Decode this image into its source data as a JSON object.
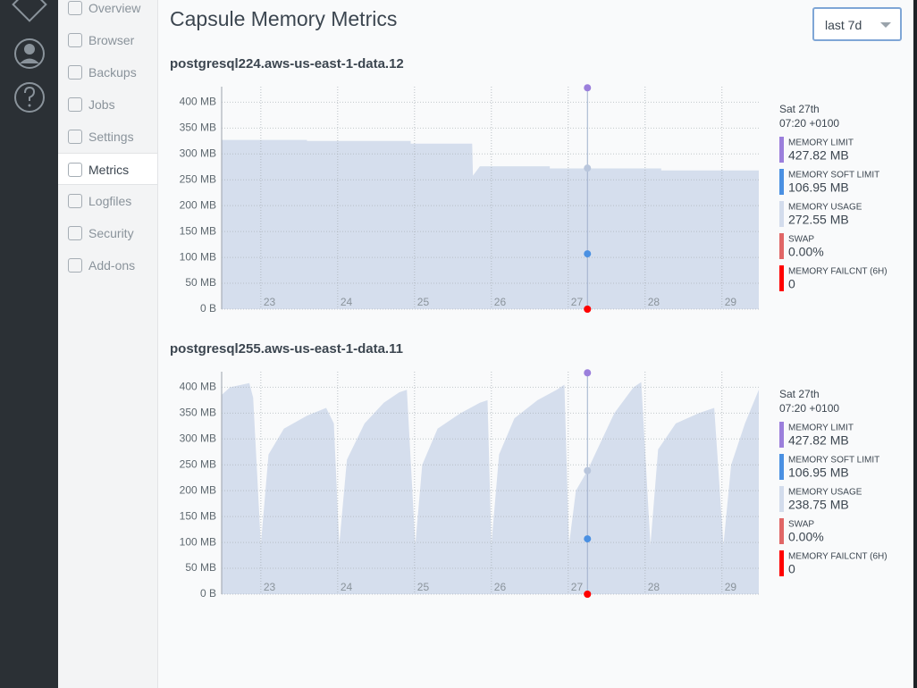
{
  "nav": {
    "items": [
      "Overview",
      "Browser",
      "Backups",
      "Jobs",
      "Settings",
      "Metrics",
      "Logfiles",
      "Security",
      "Add-ons"
    ],
    "active": 5
  },
  "header": {
    "title": "Capsule Memory Metrics",
    "range": "last 7d"
  },
  "chart_data": [
    {
      "type": "area",
      "title": "postgresql224.aws-us-east-1-data.12",
      "xlim": [
        22.49,
        29.48
      ],
      "xticks": [
        23,
        24,
        25,
        26,
        27,
        28,
        29
      ],
      "ylim": [
        0,
        430
      ],
      "yticks": [
        {
          "value": 0,
          "label": "0 B"
        },
        {
          "value": 50,
          "label": "50 MB"
        },
        {
          "value": 100,
          "label": "100 MB"
        },
        {
          "value": 150,
          "label": "150 MB"
        },
        {
          "value": 200,
          "label": "200 MB"
        },
        {
          "value": 250,
          "label": "250 MB"
        },
        {
          "value": 300,
          "label": "300 MB"
        },
        {
          "value": 350,
          "label": "350 MB"
        },
        {
          "value": 400,
          "label": "400 MB"
        }
      ],
      "grid": true,
      "hover": {
        "x": 27.25,
        "date": "Sat 27th",
        "time": "07:20 +0100"
      },
      "series": [
        {
          "name": "MEMORY LIMIT",
          "color": "#9b7fdc",
          "style": "line",
          "x": [
            22.49,
            29.48
          ],
          "values": [
            427.82,
            427.82
          ],
          "hover_value": 427.82,
          "hover_label": "427.82 MB"
        },
        {
          "name": "MEMORY SOFT LIMIT",
          "color": "#4a90e2",
          "style": "line",
          "x": [
            22.49,
            29.48
          ],
          "values": [
            106.95,
            106.95
          ],
          "hover_value": 106.95,
          "hover_label": "106.95 MB"
        },
        {
          "name": "MEMORY USAGE",
          "color": "#d3dcec",
          "style": "area",
          "x": [
            22.49,
            23.6,
            23.6,
            24.95,
            24.95,
            25.75,
            25.76,
            25.85,
            26.76,
            26.76,
            28.21,
            28.21,
            29.48
          ],
          "values": [
            327,
            327,
            325,
            325,
            320,
            320,
            258,
            276,
            276,
            272,
            272,
            268,
            268
          ],
          "hover_value": 272.55,
          "hover_label": "272.55 MB"
        },
        {
          "name": "SWAP",
          "color": "#e06666",
          "style": "line",
          "x": [
            22.49,
            29.48
          ],
          "values": [
            0,
            0
          ],
          "hover_value": 0,
          "hover_label": "0.00%"
        },
        {
          "name": "MEMORY FAILCNT (6H)",
          "color": "#ff0000",
          "style": "line",
          "x": [
            22.49,
            29.48
          ],
          "values": [
            0,
            0
          ],
          "hover_value": 0
        }
      ]
    },
    {
      "type": "area",
      "title": "postgresql255.aws-us-east-1-data.11",
      "xlim": [
        22.49,
        29.48
      ],
      "xticks": [
        23,
        24,
        25,
        26,
        27,
        28,
        29
      ],
      "ylim": [
        0,
        430
      ],
      "yticks": [
        {
          "value": 0,
          "label": "0 B"
        },
        {
          "value": 50,
          "label": "50 MB"
        },
        {
          "value": 100,
          "label": "100 MB"
        },
        {
          "value": 150,
          "label": "150 MB"
        },
        {
          "value": 200,
          "label": "200 MB"
        },
        {
          "value": 250,
          "label": "250 MB"
        },
        {
          "value": 300,
          "label": "300 MB"
        },
        {
          "value": 350,
          "label": "350 MB"
        },
        {
          "value": 400,
          "label": "400 MB"
        }
      ],
      "grid": true,
      "hover": {
        "x": 27.25,
        "date": "Sat 27th",
        "time": "07:20 +0100"
      },
      "series": [
        {
          "name": "MEMORY LIMIT",
          "color": "#9b7fdc",
          "style": "line",
          "x": [
            22.49,
            29.48
          ],
          "values": [
            427.82,
            427.82
          ],
          "hover_value": 427.82,
          "hover_label": "427.82 MB"
        },
        {
          "name": "MEMORY SOFT LIMIT",
          "color": "#4a90e2",
          "style": "line",
          "x": [
            22.49,
            29.48
          ],
          "values": [
            106.95,
            106.95
          ],
          "hover_value": 106.95,
          "hover_label": "106.95 MB"
        },
        {
          "name": "MEMORY USAGE",
          "color": "#d3dcec",
          "style": "area",
          "x": [
            22.49,
            22.6,
            22.85,
            22.9,
            23.0,
            23.1,
            23.3,
            23.6,
            23.85,
            23.95,
            24.02,
            24.12,
            24.35,
            24.6,
            24.8,
            24.9,
            25.01,
            25.1,
            25.3,
            25.6,
            25.85,
            25.95,
            26.0,
            26.1,
            26.3,
            26.6,
            26.85,
            26.95,
            27.01,
            27.1,
            27.25,
            27.6,
            27.85,
            27.95,
            28.07,
            28.17,
            28.4,
            28.7,
            28.9,
            29.02,
            29.12,
            29.3,
            29.48
          ],
          "values": [
            385,
            400,
            408,
            380,
            95,
            270,
            320,
            345,
            360,
            330,
            95,
            260,
            330,
            370,
            390,
            395,
            95,
            250,
            320,
            350,
            370,
            375,
            95,
            270,
            340,
            375,
            395,
            405,
            95,
            200,
            239,
            350,
            400,
            410,
            95,
            280,
            330,
            350,
            360,
            95,
            250,
            330,
            395
          ],
          "hover_value": 238.75,
          "hover_label": "238.75 MB"
        },
        {
          "name": "SWAP",
          "color": "#e06666",
          "style": "line",
          "x": [
            22.49,
            29.48
          ],
          "values": [
            0,
            0
          ],
          "hover_value": 0,
          "hover_label": "0.00%"
        },
        {
          "name": "MEMORY FAILCNT (6H)",
          "color": "#ff0000",
          "style": "line",
          "x": [
            22.49,
            29.48
          ],
          "values": [
            0,
            0
          ],
          "hover_value": 0
        }
      ]
    }
  ]
}
